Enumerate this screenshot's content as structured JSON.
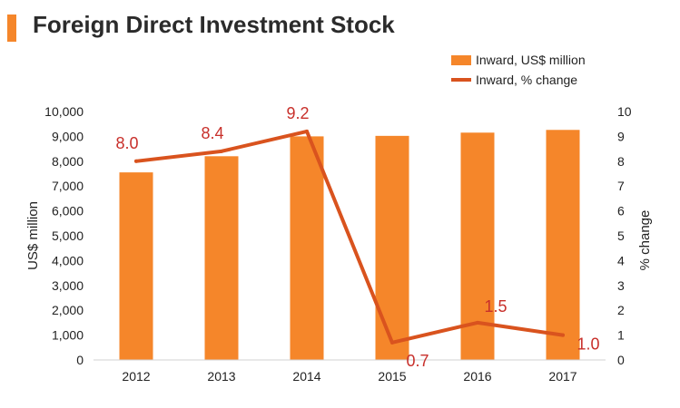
{
  "title": "Foreign Direct Investment Stock",
  "colors": {
    "bar": "#F5862A",
    "line": "#D9531E",
    "label": "#C8302B",
    "accent": "#F5862A"
  },
  "chart_data": {
    "type": "bar+line",
    "categories": [
      "2012",
      "2013",
      "2014",
      "2015",
      "2016",
      "2017"
    ],
    "series": [
      {
        "name": "Inward, US$ million",
        "type": "bar",
        "axis": "left",
        "values": [
          7550,
          8200,
          9000,
          9020,
          9150,
          9260
        ]
      },
      {
        "name": "Inward, % change",
        "type": "line",
        "axis": "right",
        "values": [
          8.0,
          8.4,
          9.2,
          0.7,
          1.5,
          1.0
        ],
        "labels": [
          "8.0",
          "8.4",
          "9.2",
          "0.7",
          "1.5",
          "1.0"
        ]
      }
    ],
    "ylabel_left": "US$ million",
    "ylabel_right": "% change",
    "ylim_left": [
      0,
      10000
    ],
    "ylim_right": [
      0,
      10
    ],
    "yticks_left": [
      "0",
      "1,000",
      "2,000",
      "3,000",
      "4,000",
      "5,000",
      "6,000",
      "7,000",
      "8,000",
      "9,000",
      "10,000"
    ],
    "yticks_right": [
      "0",
      "1",
      "2",
      "3",
      "4",
      "5",
      "6",
      "7",
      "8",
      "9",
      "10"
    ],
    "grid": false,
    "legend": "top-right"
  }
}
